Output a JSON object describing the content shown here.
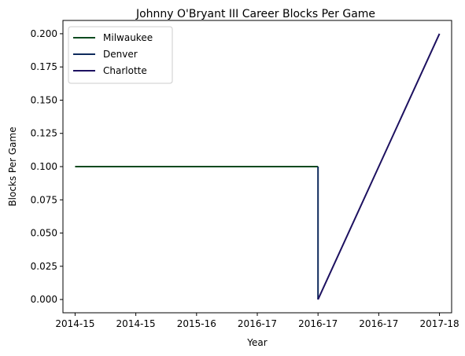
{
  "chart_data": {
    "type": "line",
    "title": "Johnny O'Bryant III Career Blocks Per Game",
    "xlabel": "Year",
    "ylabel": "Blocks Per Game",
    "x_tick_labels": [
      "2014-15",
      "2014-15",
      "2015-16",
      "2016-17",
      "2016-17",
      "2016-17",
      "2017-18"
    ],
    "x_range": [
      -0.2,
      6.2
    ],
    "y_ticks": [
      0.0,
      0.025,
      0.05,
      0.075,
      0.1,
      0.125,
      0.15,
      0.175,
      0.2
    ],
    "y_tick_labels": [
      "0.000",
      "0.025",
      "0.050",
      "0.075",
      "0.100",
      "0.125",
      "0.150",
      "0.175",
      "0.200"
    ],
    "ylim": [
      -0.01,
      0.21
    ],
    "grid": false,
    "legend_position": "top-left",
    "series": [
      {
        "name": "Milwaukee",
        "color": "#0b4a1f",
        "x": [
          0,
          1,
          2,
          3,
          4
        ],
        "y": [
          0.1,
          0.1,
          0.1,
          0.1,
          0.1
        ]
      },
      {
        "name": "Denver",
        "color": "#0e2a5c",
        "x": [
          4,
          4
        ],
        "y": [
          0.1,
          0.0
        ]
      },
      {
        "name": "Charlotte",
        "color": "#1d1160",
        "x": [
          4,
          5,
          6
        ],
        "y": [
          0.0,
          0.1,
          0.2
        ]
      }
    ]
  }
}
